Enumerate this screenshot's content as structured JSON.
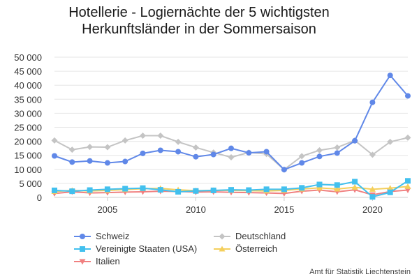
{
  "chart_data": {
    "type": "line",
    "title_lines": [
      "Hotellerie - Logiernächte der 5 wichtigsten",
      "Herkunftsländer in der Sommersaison"
    ],
    "xlabel": "",
    "ylabel": "",
    "xlim": [
      2002,
      2022
    ],
    "ylim": [
      0,
      50000
    ],
    "x_ticks": [
      2005,
      2010,
      2015,
      2020
    ],
    "y_ticks": [
      0,
      5000,
      10000,
      15000,
      20000,
      25000,
      30000,
      35000,
      40000,
      45000,
      50000
    ],
    "y_tick_labels": [
      "0",
      "5 000",
      "10 000",
      "15 000",
      "20 000",
      "25 000",
      "30 000",
      "35 000",
      "40 000",
      "45 000",
      "50 000"
    ],
    "grid": "horizontal",
    "legend_position": "bottom",
    "x": [
      2002,
      2003,
      2004,
      2005,
      2006,
      2007,
      2008,
      2009,
      2010,
      2011,
      2012,
      2013,
      2014,
      2015,
      2016,
      2017,
      2018,
      2019,
      2020,
      2021,
      2022
    ],
    "series": [
      {
        "name": "Schweiz",
        "color": "#6088e8",
        "marker": "circle",
        "values": [
          14800,
          12600,
          13000,
          12300,
          12800,
          15700,
          16800,
          16300,
          14500,
          15300,
          17500,
          15900,
          16300,
          9900,
          12300,
          14600,
          15800,
          20200,
          33900,
          43500,
          36200
        ]
      },
      {
        "name": "Deutschland",
        "color": "#c4c4c4",
        "marker": "diamond",
        "values": [
          20300,
          17000,
          18000,
          17900,
          20300,
          22000,
          22000,
          19800,
          17800,
          16000,
          14300,
          16000,
          15500,
          9900,
          14700,
          16800,
          17800,
          20300,
          15200,
          19800,
          21300
        ]
      },
      {
        "name": "Vereinigte Staaten (USA)",
        "color": "#42c0ee",
        "marker": "square",
        "values": [
          2500,
          2200,
          2600,
          2900,
          3100,
          3300,
          2700,
          2000,
          2300,
          2500,
          2700,
          2600,
          2900,
          2900,
          3400,
          4600,
          4400,
          5600,
          200,
          1800,
          5900
        ]
      },
      {
        "name": "Österreich",
        "color": "#f4cf5c",
        "marker": "triangle",
        "values": [
          2100,
          2500,
          2300,
          2500,
          2800,
          3100,
          3200,
          2700,
          2400,
          2500,
          2500,
          2400,
          2300,
          2500,
          3000,
          3400,
          3000,
          3600,
          2900,
          3300,
          3900
        ]
      },
      {
        "name": "Italien",
        "color": "#f08080",
        "marker": "triangle-down",
        "values": [
          1400,
          2000,
          1600,
          1700,
          1900,
          2000,
          2200,
          2100,
          1900,
          2000,
          1800,
          1700,
          1600,
          1400,
          2200,
          2600,
          2000,
          2700,
          900,
          2100,
          2600
        ]
      }
    ],
    "source": "Amt für Statistik Liechtenstein"
  }
}
